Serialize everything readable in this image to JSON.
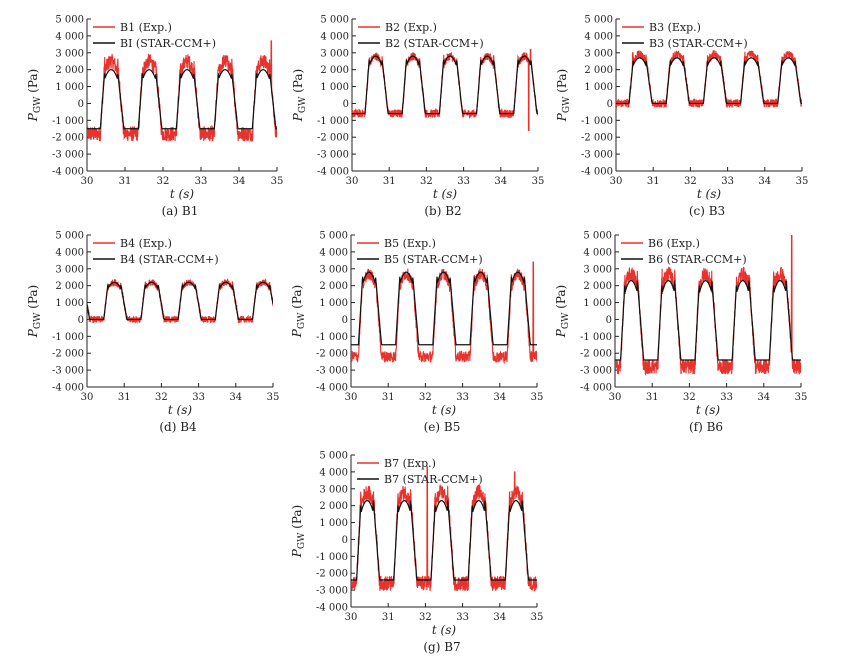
{
  "colors": {
    "experiment": "#e8322d",
    "simulation": "#111111",
    "axis": "#222222"
  },
  "chart_data": [
    {
      "type": "line",
      "caption": "(a) B1",
      "xlabel": "t (s)",
      "ylabel": "P_GW (Pa)",
      "xlim": [
        30,
        35
      ],
      "ylim": [
        -4000,
        5000
      ],
      "xticks": [
        "30",
        "31",
        "32",
        "33",
        "34",
        "35"
      ],
      "yticks": [
        "-4 000",
        "-3 000",
        "-2 000",
        "-1 000",
        "0",
        "1 000",
        "2 000",
        "3 000",
        "4 000",
        "5 000"
      ],
      "legend": [
        "B1 (Exp.)",
        "BI (STAR-CCM+)"
      ],
      "legend_position": "top-left",
      "grid": false,
      "series": [
        {
          "name": "B1 (Exp.)",
          "period": 1.0,
          "phase": 30.35,
          "min": -1800,
          "max": 2500,
          "noise": 450,
          "spikes": [
            [
              34.85,
              3700
            ]
          ]
        },
        {
          "name": "BI (STAR-CCM+)",
          "period": 1.0,
          "phase": 30.35,
          "min": -1500,
          "max": 2000
        }
      ]
    },
    {
      "type": "line",
      "caption": "(b) B2",
      "xlabel": "t (s)",
      "ylabel": "P_GW (Pa)",
      "xlim": [
        30,
        35
      ],
      "ylim": [
        -4000,
        5000
      ],
      "xticks": [
        "30",
        "31",
        "32",
        "33",
        "34",
        "35"
      ],
      "yticks": [
        "-4 000",
        "-3 000",
        "-2 000",
        "-1 000",
        "0",
        "1 000",
        "2 000",
        "3 000",
        "4 000",
        "5 000"
      ],
      "legend": [
        "B2 (Exp.)",
        "B2 (STAR-CCM+)"
      ],
      "legend_position": "top-left",
      "grid": false,
      "series": [
        {
          "name": "B2 (Exp.)",
          "period": 1.0,
          "phase": 30.35,
          "min": -600,
          "max": 2800,
          "noise": 250,
          "spikes": [
            [
              34.8,
              3200
            ],
            [
              34.75,
              -1600
            ]
          ]
        },
        {
          "name": "B2 (STAR-CCM+)",
          "period": 1.0,
          "phase": 30.35,
          "min": -600,
          "max": 2800
        }
      ]
    },
    {
      "type": "line",
      "caption": "(c) B3",
      "xlabel": "t (s)",
      "ylabel": "P_GW (Pa)",
      "xlim": [
        30,
        35
      ],
      "ylim": [
        -4000,
        5000
      ],
      "xticks": [
        "30",
        "31",
        "32",
        "33",
        "34",
        "35"
      ],
      "yticks": [
        "-4 000",
        "-3 000",
        "-2 000",
        "-1 000",
        "0",
        "1 000",
        "2 000",
        "3 000",
        "4 000",
        "5 000"
      ],
      "legend": [
        "B3 (Exp.)",
        "B3 (STAR-CCM+)"
      ],
      "legend_position": "top-left",
      "grid": false,
      "series": [
        {
          "name": "B3 (Exp.)",
          "period": 1.0,
          "phase": 30.35,
          "min": 0,
          "max": 2900,
          "noise": 250,
          "spikes": [
            [
              30.45,
              3000
            ]
          ]
        },
        {
          "name": "B3 (STAR-CCM+)",
          "period": 1.0,
          "phase": 30.35,
          "min": 0,
          "max": 2700
        }
      ]
    },
    {
      "type": "line",
      "caption": "(d) B4",
      "xlabel": "t (s)",
      "ylabel": "P_GW (Pa)",
      "xlim": [
        30,
        35
      ],
      "ylim": [
        -4000,
        5000
      ],
      "xticks": [
        "30",
        "31",
        "32",
        "33",
        "34",
        "35"
      ],
      "yticks": [
        "-4 000",
        "-3 000",
        "-2 000",
        "-1 000",
        "0",
        "1 000",
        "2 000",
        "3 000",
        "4 000",
        "5 000"
      ],
      "legend": [
        "B4 (Exp.)",
        "B4 (STAR-CCM+)"
      ],
      "legend_position": "top-left",
      "grid": false,
      "series": [
        {
          "name": "B4 (Exp.)",
          "period": 1.0,
          "phase": 30.45,
          "min": 0,
          "max": 2200,
          "noise": 200,
          "spikes": []
        },
        {
          "name": "B4 (STAR-CCM+)",
          "period": 1.0,
          "phase": 30.45,
          "min": 0,
          "max": 2200
        }
      ]
    },
    {
      "type": "line",
      "caption": "(e) B5",
      "xlabel": "t (s)",
      "ylabel": "P_GW (Pa)",
      "xlim": [
        30,
        35
      ],
      "ylim": [
        -4000,
        5000
      ],
      "xticks": [
        "30",
        "31",
        "32",
        "33",
        "34",
        "35"
      ],
      "yticks": [
        "-4 000",
        "-3 000",
        "-2 000",
        "-1 000",
        "0",
        "1 000",
        "2 000",
        "3 000",
        "4 000",
        "5 000"
      ],
      "legend": [
        "B5 (Exp.)",
        "B5 (STAR-CCM+)"
      ],
      "legend_position": "top-left",
      "grid": false,
      "series": [
        {
          "name": "B5 (Exp.)",
          "period": 1.0,
          "phase": 30.2,
          "min": -2200,
          "max": 2700,
          "noise": 350,
          "spikes": [
            [
              34.9,
              3400
            ]
          ]
        },
        {
          "name": "B5 (STAR-CCM+)",
          "period": 1.0,
          "phase": 30.2,
          "min": -1500,
          "max": 2800
        }
      ]
    },
    {
      "type": "line",
      "caption": "(f) B6",
      "xlabel": "t (s)",
      "ylabel": "P_GW (Pa)",
      "xlim": [
        30,
        35
      ],
      "ylim": [
        -4000,
        5000
      ],
      "xticks": [
        "30",
        "31",
        "32",
        "33",
        "34",
        "35"
      ],
      "yticks": [
        "-4 000",
        "-3 000",
        "-2 000",
        "-1 000",
        "0",
        "1 000",
        "2 000",
        "3 000",
        "4 000",
        "5 000"
      ],
      "legend": [
        "B6 (Exp.)",
        "B6 (STAR-CCM+)"
      ],
      "legend_position": "top-left",
      "grid": false,
      "series": [
        {
          "name": "B6 (Exp.)",
          "period": 1.0,
          "phase": 30.15,
          "min": -2800,
          "max": 2700,
          "noise": 450,
          "spikes": [
            [
              34.75,
              5000
            ]
          ]
        },
        {
          "name": "B6 (STAR-CCM+)",
          "period": 1.0,
          "phase": 30.15,
          "min": -2400,
          "max": 2300
        }
      ]
    },
    {
      "type": "line",
      "caption": "(g) B7",
      "xlabel": "t (s)",
      "ylabel": "P_GW (Pa)",
      "xlim": [
        30,
        35
      ],
      "ylim": [
        -4000,
        5000
      ],
      "xticks": [
        "30",
        "31",
        "32",
        "33",
        "34",
        "35"
      ],
      "yticks": [
        "-4 000",
        "-3 000",
        "-2 000",
        "-1 000",
        "0",
        "1 000",
        "2 000",
        "3 000",
        "4 000",
        "5 000"
      ],
      "legend": [
        "B7 (Exp.)",
        "B7 (STAR-CCM+)"
      ],
      "legend_position": "top-left",
      "grid": false,
      "series": [
        {
          "name": "B7 (Exp.)",
          "period": 1.0,
          "phase": 30.15,
          "min": -2600,
          "max": 2800,
          "noise": 450,
          "spikes": [
            [
              32.05,
              4300
            ],
            [
              34.4,
              4000
            ]
          ]
        },
        {
          "name": "B7 (STAR-CCM+)",
          "period": 1.0,
          "phase": 30.15,
          "min": -2400,
          "max": 2300
        }
      ]
    }
  ]
}
